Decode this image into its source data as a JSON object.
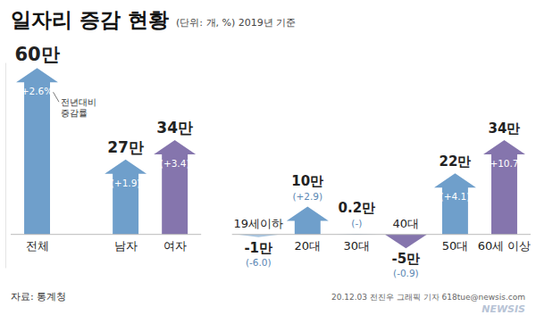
{
  "chart_data": {
    "type": "bar",
    "title": "일자리 증감 현황",
    "subtitle": "(단위: 개, %) 2019년 기준",
    "categories": [
      "전체",
      "남자",
      "여자",
      "19세이하",
      "20대",
      "30대",
      "40대",
      "50대",
      "60세 이상"
    ],
    "values": [
      60,
      27,
      34,
      -1,
      10,
      0.2,
      -5,
      22,
      34
    ],
    "value_labels": [
      "60만",
      "27만",
      "34만",
      "-1만",
      "10만",
      "0.2만",
      "-5만",
      "22만",
      "34만"
    ],
    "rates": [
      2.6,
      1.9,
      3.4,
      -6.0,
      2.9,
      null,
      -0.9,
      4.1,
      10.7
    ],
    "rate_labels": [
      "(+2.6%)",
      "(+1.9)",
      "(+3.4)",
      "(-6.0)",
      "(+2.9)",
      "(-)",
      "(-0.9)",
      "(+4.1)",
      "(+10.7)"
    ],
    "colors": [
      "#6f9fcb",
      "#6f9fcb",
      "#8575ad",
      "#a9c6e0",
      "#6f9fcb",
      "#6f9fcb",
      "#8575ad",
      "#6f9fcb",
      "#8575ad"
    ],
    "annotations": [
      "전년대비 증감률"
    ],
    "source": "자료: 통계청",
    "credit": "20.12.03 전진우 그래픽 기자 618tue@newsis.com",
    "watermark": "NEWSIS",
    "ylim": [
      -12,
      62
    ],
    "data_labels": true,
    "tick_labels": false
  }
}
